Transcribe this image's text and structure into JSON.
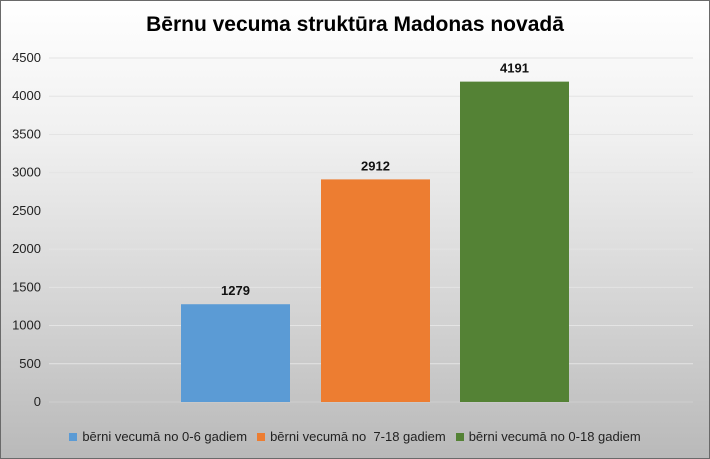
{
  "chart_data": {
    "type": "bar",
    "title": "Bērnu vecuma struktūra Madonas novadā",
    "categories": [
      "bērni vecumā no 0-6 gadiem",
      "bērni vecumā no  7-18 gadiem",
      "bērni vecumā no 0-18 gadiem"
    ],
    "values": [
      1279,
      2912,
      4191
    ],
    "colors": [
      "#5b9bd5",
      "#ed7d31",
      "#548235"
    ],
    "ylim": [
      0,
      4500
    ],
    "yticks": [
      0,
      500,
      1000,
      1500,
      2000,
      2500,
      3000,
      3500,
      4000,
      4500
    ],
    "xlabel": "",
    "ylabel": "",
    "grid": true,
    "legend_position": "bottom"
  }
}
